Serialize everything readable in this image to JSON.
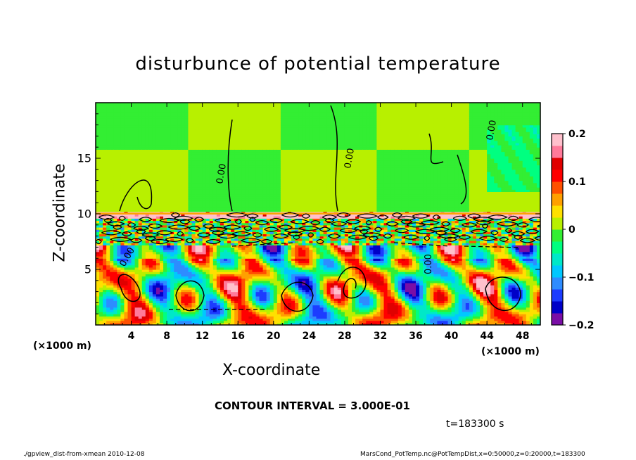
{
  "page": {
    "title": "disturbunce of potential temperature",
    "contour_interval": "CONTOUR INTERVAL = 3.000E-01",
    "time_label": "t=183300 s",
    "footer_left": "./gpview_dist-from-xmean  2010-12-08",
    "footer_right": "MarsCond_PotTemp.nc@PotTempDist,x=0:50000,z=0:20000,t=183300"
  },
  "chart_data": {
    "type": "heatmap",
    "title": "disturbunce of potential temperature",
    "xlabel": "X-coordinate",
    "ylabel": "Z-coordinate",
    "x_unit": "(×1000 m)",
    "y_unit": "(×1000 m)",
    "xlim": [
      0,
      50
    ],
    "ylim": [
      0,
      20
    ],
    "x_ticks": [
      "4",
      "8",
      "12",
      "16",
      "20",
      "24",
      "28",
      "32",
      "36",
      "40",
      "44",
      "48"
    ],
    "y_ticks": [
      "5",
      "10",
      "15"
    ],
    "colorbar": {
      "range": [
        -0.2,
        0.2
      ],
      "tick_labels": [
        "0.2",
        "0.1",
        "0",
        "−0.1",
        "−0.2"
      ],
      "colors": [
        "#7a0ea6",
        "#0000c8",
        "#1c3cff",
        "#2e8cff",
        "#00c8ff",
        "#00e8c8",
        "#00ff80",
        "#33ee33",
        "#b8f000",
        "#ffe000",
        "#ffa000",
        "#ff5000",
        "#ff0000",
        "#e00000",
        "#ff7a9a",
        "#ffc0cc"
      ]
    },
    "contour_interval": 0.3,
    "contour_labels": [
      "0.00",
      "0.00",
      "0.00",
      "0.00",
      "0.00"
    ],
    "regions": [
      {
        "description_value": 0.0,
        "zmin": 10,
        "zmax": 20
      },
      {
        "description_value": "alternating",
        "zmin": 0,
        "zmax": 10
      }
    ]
  }
}
